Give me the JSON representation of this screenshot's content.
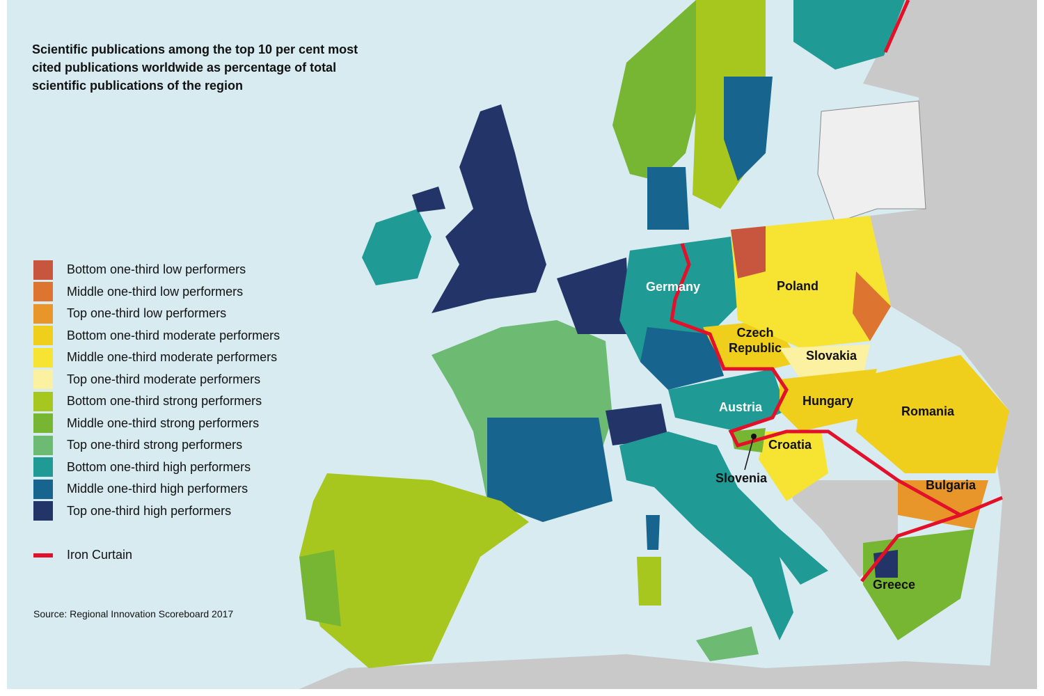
{
  "title": "Scientific publications among the top 10 per cent most cited publications worldwide as percentage of total scientific publications of the region",
  "legend": {
    "items": [
      {
        "label": "Bottom one-third low performers",
        "color": "#c8553d"
      },
      {
        "label": "Middle one-third low performers",
        "color": "#dd7530"
      },
      {
        "label": "Top one-third low performers",
        "color": "#e8962a"
      },
      {
        "label": "Bottom one-third moderate performers",
        "color": "#f0cf1c"
      },
      {
        "label": "Middle one-third moderate performers",
        "color": "#f7e332"
      },
      {
        "label": "Top one-third moderate performers",
        "color": "#fbf1a0"
      },
      {
        "label": "Bottom one-third strong performers",
        "color": "#a7c61e"
      },
      {
        "label": "Middle one-third strong performers",
        "color": "#76b633"
      },
      {
        "label": "Top one-third strong performers",
        "color": "#6dba72"
      },
      {
        "label": "Bottom one-third high performers",
        "color": "#1f9a94"
      },
      {
        "label": "Middle one-third high performers",
        "color": "#17648f"
      },
      {
        "label": "Top one-third high performers",
        "color": "#233468"
      }
    ],
    "iron_curtain": {
      "label": "Iron Curtain",
      "color": "#e3102a"
    }
  },
  "countries": [
    "Germany",
    "Poland",
    "Czech Republic",
    "Slovakia",
    "Austria",
    "Hungary",
    "Romania",
    "Croatia",
    "Slovenia",
    "Bulgaria",
    "Greece"
  ],
  "source": "Source: Regional Innovation Scoreboard 2017"
}
